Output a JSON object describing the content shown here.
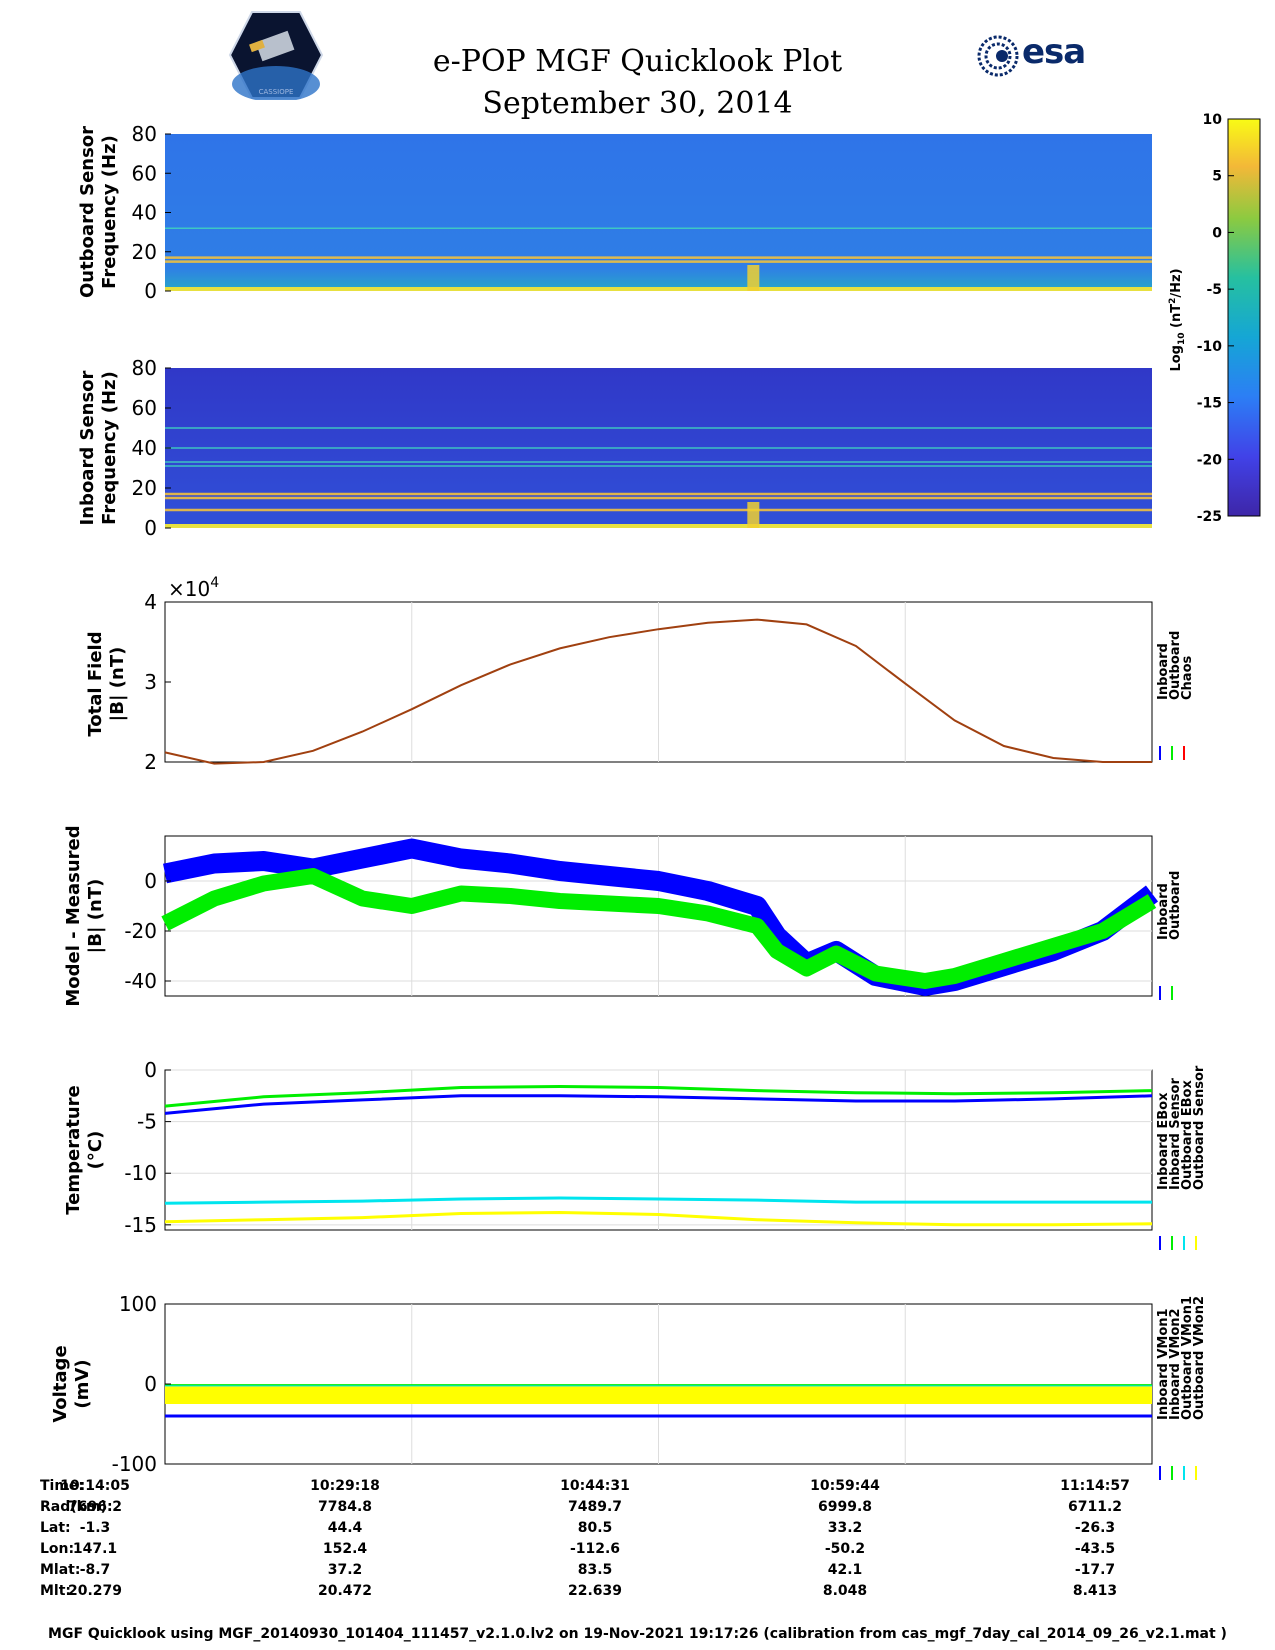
{
  "header": {
    "title": "e-POP MGF Quicklook Plot",
    "date": "September 30, 2014",
    "left_logo": "CASSIOPE",
    "right_logo": "esa"
  },
  "colors": {
    "blue": "#0000ff",
    "green": "#00ee00",
    "red": "#ff0000",
    "cyan": "#00e5ee",
    "yellow": "#ffff00",
    "trace": "#a04010",
    "spec_bg": "#2f6fe6"
  },
  "chart_data": [
    {
      "id": "outboard-spectrogram",
      "type": "heatmap",
      "ylabel": [
        "Outboard Sensor",
        "Frequency (Hz)"
      ],
      "ylim": [
        0,
        80
      ],
      "yticks": [
        "80",
        "60",
        "40",
        "20",
        "0"
      ],
      "lines_hz": [
        32,
        17,
        15
      ]
    },
    {
      "id": "inboard-spectrogram",
      "type": "heatmap",
      "ylabel": [
        "Inboard Sensor",
        "Frequency (Hz)"
      ],
      "ylim": [
        0,
        80
      ],
      "yticks": [
        "80",
        "60",
        "40",
        "20",
        "0"
      ],
      "lines_hz": [
        50,
        40,
        33,
        31,
        17,
        15,
        9
      ]
    },
    {
      "id": "colorbar",
      "type": "heatmap",
      "label": "Log10 (nT2/Hz)",
      "label_main": "Log",
      "label_sub": "10",
      "label_rest": " (nT",
      "label_sup": "2",
      "label_end": "/Hz)",
      "ticks": [
        "10",
        "5",
        "0",
        "-5",
        "-10",
        "-15",
        "-20",
        "-25"
      ],
      "range": [
        -25,
        10
      ]
    },
    {
      "id": "total-field",
      "type": "line",
      "ylabel": [
        "Total Field",
        "|B| (nT)"
      ],
      "ylim": [
        2,
        4
      ],
      "yticks": [
        "4",
        "3",
        "2"
      ],
      "multiplier_base": "×10",
      "multiplier_exp": "4",
      "legend": [
        "Inboard",
        "Outboard",
        "Chaos"
      ],
      "x": [
        0,
        0.05,
        0.1,
        0.15,
        0.2,
        0.25,
        0.3,
        0.35,
        0.4,
        0.45,
        0.5,
        0.55,
        0.6,
        0.65,
        0.7,
        0.75,
        0.8,
        0.85,
        0.9,
        0.95,
        1.0
      ],
      "values": [
        2.12,
        1.98,
        2.0,
        2.14,
        2.38,
        2.66,
        2.96,
        3.22,
        3.42,
        3.56,
        3.66,
        3.74,
        3.78,
        3.72,
        3.45,
        2.98,
        2.52,
        2.2,
        2.05,
        2.0,
        2.0
      ]
    },
    {
      "id": "model-measured",
      "type": "line",
      "ylabel": [
        "Model - Measured",
        "|B| (nT)"
      ],
      "ylim": [
        -46,
        18
      ],
      "yticks": [
        "0",
        "-20",
        "-40"
      ],
      "ytick_values": [
        0,
        -20,
        -40
      ],
      "legend": [
        "Inboard",
        "Outboard"
      ],
      "x": [
        0,
        0.05,
        0.1,
        0.15,
        0.2,
        0.25,
        0.3,
        0.35,
        0.4,
        0.45,
        0.5,
        0.55,
        0.6,
        0.62,
        0.65,
        0.68,
        0.72,
        0.77,
        0.8,
        0.85,
        0.9,
        0.95,
        1.0
      ],
      "series": [
        {
          "name": "Inboard",
          "values": [
            3,
            7,
            8,
            5,
            9,
            13,
            9,
            7,
            4,
            2,
            0,
            -4,
            -10,
            -22,
            -33,
            -28,
            -38,
            -42,
            -40,
            -34,
            -28,
            -20,
            -5
          ]
        },
        {
          "name": "Outboard",
          "values": [
            -17,
            -7,
            -1,
            2,
            -7,
            -10,
            -5,
            -6,
            -8,
            -9,
            -10,
            -13,
            -18,
            -28,
            -35,
            -29,
            -37,
            -40,
            -38,
            -32,
            -26,
            -20,
            -8
          ]
        }
      ]
    },
    {
      "id": "temperature",
      "type": "line",
      "ylabel": [
        "Temperature",
        "(°C)"
      ],
      "ylim": [
        -15.5,
        0
      ],
      "yticks": [
        "0",
        "-5",
        "-10",
        "-15"
      ],
      "ytick_values": [
        0,
        -5,
        -10,
        -15
      ],
      "legend": [
        "Inboard EBox",
        "Inboard Sensor",
        "Outboard EBox",
        "Outboard Sensor"
      ],
      "x": [
        0,
        0.1,
        0.2,
        0.3,
        0.4,
        0.5,
        0.6,
        0.7,
        0.8,
        0.9,
        1.0
      ],
      "series": [
        {
          "name": "Inboard EBox",
          "values": [
            -4.2,
            -3.3,
            -2.9,
            -2.5,
            -2.5,
            -2.6,
            -2.8,
            -3.0,
            -3.0,
            -2.8,
            -2.5
          ]
        },
        {
          "name": "Inboard Sensor",
          "values": [
            -3.5,
            -2.6,
            -2.2,
            -1.7,
            -1.6,
            -1.7,
            -2.0,
            -2.2,
            -2.3,
            -2.2,
            -2.0
          ]
        },
        {
          "name": "Outboard EBox",
          "values": [
            -12.9,
            -12.8,
            -12.7,
            -12.5,
            -12.4,
            -12.5,
            -12.6,
            -12.8,
            -12.8,
            -12.8,
            -12.8
          ]
        },
        {
          "name": "Outboard Sensor",
          "values": [
            -14.7,
            -14.5,
            -14.3,
            -13.9,
            -13.8,
            -14.0,
            -14.5,
            -14.8,
            -15.0,
            -15.0,
            -14.9
          ]
        }
      ]
    },
    {
      "id": "voltage",
      "type": "line",
      "ylabel": [
        "Voltage",
        "(mV)"
      ],
      "ylim": [
        -100,
        100
      ],
      "yticks": [
        "100",
        "0",
        "-100"
      ],
      "ytick_values": [
        100,
        0,
        -100
      ],
      "legend": [
        "Inboard VMon1",
        "Inboard VMon2",
        "Outboard VMon1",
        "Outboard VMon2"
      ],
      "series": [
        {
          "name": "Inboard VMon1",
          "values": [
            -40,
            -40
          ]
        },
        {
          "name": "Inboard VMon2",
          "values": [
            -2,
            -2
          ]
        },
        {
          "name": "Outboard VMon1",
          "values": [
            -3,
            -3
          ]
        },
        {
          "name": "Outboard VMon2",
          "values": [
            -15,
            -15
          ]
        }
      ]
    }
  ],
  "ephemeris": {
    "labels": [
      "Time:",
      "Rad(km):",
      "Lat:",
      "Lon:",
      "Mlat:",
      "Mlt:"
    ],
    "columns": [
      [
        "10:14:05",
        "7696.2",
        "-1.3",
        "147.1",
        "-8.7",
        "20.279"
      ],
      [
        "10:29:18",
        "7784.8",
        "44.4",
        "152.4",
        "37.2",
        "20.472"
      ],
      [
        "10:44:31",
        "7489.7",
        "80.5",
        "-112.6",
        "83.5",
        "22.639"
      ],
      [
        "10:59:44",
        "6999.8",
        "33.2",
        "-50.2",
        "42.1",
        "8.048"
      ],
      [
        "11:14:57",
        "6711.2",
        "-26.3",
        "-43.5",
        "-17.7",
        "8.413"
      ]
    ]
  },
  "footer": "MGF Quicklook using MGF_20140930_101404_111457_v2.1.0.lv2 on 19-Nov-2021 19:17:26 (calibration from cas_mgf_7day_cal_2014_09_26_v2.1.mat )"
}
